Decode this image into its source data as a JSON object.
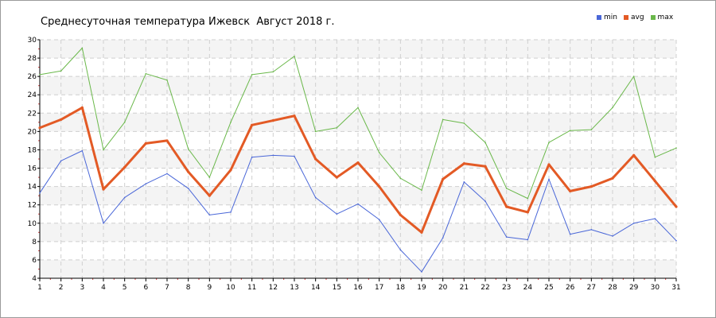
{
  "chart_data": {
    "type": "line",
    "title": "Среднесуточная температура Ижевск  Август 2018 г.",
    "xlabel": "",
    "ylabel": "",
    "x": [
      1,
      2,
      3,
      4,
      5,
      6,
      7,
      8,
      9,
      10,
      11,
      12,
      13,
      14,
      15,
      16,
      17,
      18,
      19,
      20,
      21,
      22,
      23,
      24,
      25,
      26,
      27,
      28,
      29,
      30,
      31
    ],
    "x_tick_labels": [
      "1",
      "2",
      "3",
      "4",
      "5",
      "6",
      "7",
      "8",
      "9",
      "10",
      "11",
      "12",
      "13",
      "14",
      "15",
      "16",
      "17",
      "18",
      "19",
      "20",
      "21",
      "22",
      "23",
      "24",
      "25",
      "26",
      "27",
      "28",
      "29",
      "30",
      "31"
    ],
    "ylim": [
      4,
      30
    ],
    "y_ticks": [
      4,
      6,
      8,
      10,
      12,
      14,
      16,
      18,
      20,
      22,
      24,
      26,
      28,
      30
    ],
    "y_tick_labels": [
      "4",
      "6",
      "8",
      "10",
      "12",
      "14",
      "16",
      "18",
      "20",
      "22",
      "24",
      "26",
      "28",
      "30"
    ],
    "grid": true,
    "legend_position": "top-right",
    "series": [
      {
        "name": "min",
        "color": "#4a67d8",
        "values": [
          13.3,
          16.8,
          17.9,
          10.0,
          12.8,
          14.3,
          15.4,
          13.8,
          10.9,
          11.2,
          17.2,
          17.4,
          17.3,
          12.8,
          11.0,
          12.1,
          10.4,
          7.1,
          4.7,
          8.4,
          14.5,
          12.4,
          8.5,
          8.2,
          14.8,
          8.8,
          9.3,
          8.6,
          10.0,
          10.5,
          8.1
        ]
      },
      {
        "name": "avg",
        "color": "#e35a25",
        "values": [
          20.4,
          21.3,
          22.6,
          13.7,
          16.1,
          18.7,
          19.0,
          15.6,
          13.0,
          15.8,
          20.7,
          21.2,
          21.7,
          17.0,
          15.0,
          16.6,
          14.0,
          10.9,
          9.0,
          14.8,
          16.5,
          16.2,
          11.8,
          11.2,
          16.4,
          13.5,
          14.0,
          14.9,
          17.4,
          14.6,
          11.8
        ]
      },
      {
        "name": "max",
        "color": "#6ab84a",
        "values": [
          26.2,
          26.6,
          29.1,
          18.0,
          21.0,
          26.3,
          25.6,
          18.1,
          15.0,
          21.0,
          26.2,
          26.5,
          28.2,
          20.0,
          20.4,
          22.6,
          17.7,
          14.9,
          13.6,
          21.3,
          20.9,
          18.8,
          13.8,
          12.7,
          18.8,
          20.1,
          20.2,
          22.6,
          26.0,
          17.2,
          18.2
        ]
      }
    ]
  }
}
